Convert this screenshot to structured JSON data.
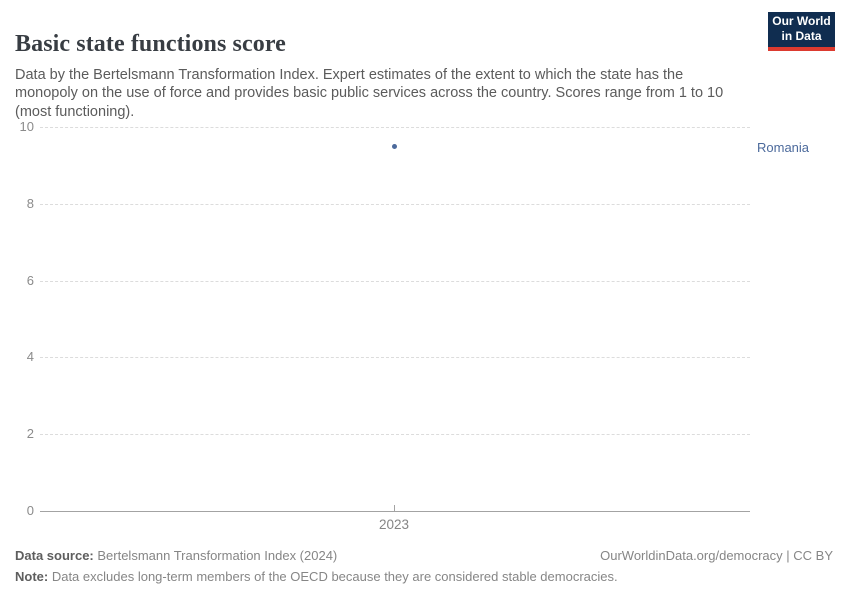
{
  "header": {
    "title": "Basic state functions score",
    "subtitle": "Data by the Bertelsmann Transformation Index. Expert estimates of the extent to which the state has the monopoly on the use of force and provides basic public services across the country. Scores range from 1 to 10 (most functioning)."
  },
  "logo": {
    "line1": "Our World",
    "line2": "in Data",
    "background_color": "#102d50",
    "accent_color": "#dc3a2f"
  },
  "chart_data": {
    "type": "scatter",
    "x": [
      2023
    ],
    "series": [
      {
        "name": "Romania",
        "values": [
          9.5
        ]
      }
    ],
    "title": "Basic state functions score",
    "xlabel": "",
    "ylabel": "",
    "ylim": [
      0,
      10
    ],
    "yticks": [
      0,
      2,
      4,
      6,
      8,
      10
    ],
    "xticks": [
      2023
    ],
    "grid": "horizontal-dashed",
    "legend_position": "label-right-of-plot",
    "point_color": "#4c6a9c"
  },
  "axes": {
    "yticks": [
      "10",
      "8",
      "6",
      "4",
      "2",
      "0"
    ],
    "xtick": "2023"
  },
  "entity_label": "Romania",
  "footer": {
    "source_label": "Data source:",
    "source_value": " Bertelsmann Transformation Index (2024)",
    "attribution": "OurWorldinData.org/democracy | CC BY",
    "note_label": "Note:",
    "note_value": " Data excludes long-term members of the OECD because they are considered stable democracies."
  }
}
